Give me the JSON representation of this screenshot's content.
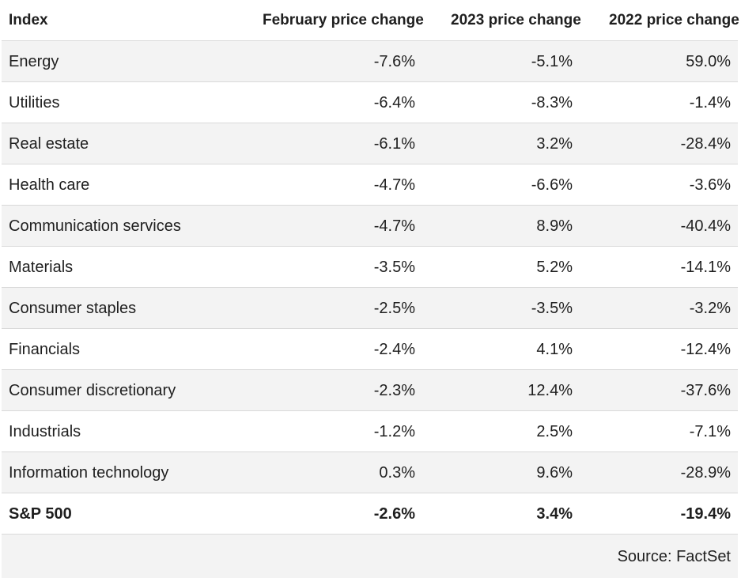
{
  "colors": {
    "row_shade": "#f3f3f3",
    "row_border": "#d9d9d9",
    "text": "#1f1f1f",
    "background": "#ffffff"
  },
  "table": {
    "headers": [
      "Index",
      "February price change",
      "2023 price change",
      "2022 price change"
    ],
    "rows": [
      {
        "label": "Energy",
        "values": [
          "-7.6%",
          "-5.1%",
          "59.0%"
        ]
      },
      {
        "label": "Utilities",
        "values": [
          "-6.4%",
          "-8.3%",
          "-1.4%"
        ]
      },
      {
        "label": "Real estate",
        "values": [
          "-6.1%",
          "3.2%",
          "-28.4%"
        ]
      },
      {
        "label": "Health care",
        "values": [
          "-4.7%",
          "-6.6%",
          "-3.6%"
        ]
      },
      {
        "label": "Communication services",
        "values": [
          "-4.7%",
          "8.9%",
          "-40.4%"
        ]
      },
      {
        "label": "Materials",
        "values": [
          "-3.5%",
          "5.2%",
          "-14.1%"
        ]
      },
      {
        "label": "Consumer staples",
        "values": [
          "-2.5%",
          "-3.5%",
          "-3.2%"
        ]
      },
      {
        "label": "Financials",
        "values": [
          "-2.4%",
          "4.1%",
          "-12.4%"
        ]
      },
      {
        "label": "Consumer discretionary",
        "values": [
          "-2.3%",
          "12.4%",
          "-37.6%"
        ]
      },
      {
        "label": "Industrials",
        "values": [
          "-1.2%",
          "2.5%",
          "-7.1%"
        ]
      },
      {
        "label": "Information technology",
        "values": [
          "0.3%",
          "9.6%",
          "-28.9%"
        ]
      },
      {
        "label": "S&P 500",
        "values": [
          "-2.6%",
          "3.4%",
          "-19.4%"
        ]
      }
    ],
    "source": "Source: FactSet"
  },
  "chart_data": {
    "type": "table",
    "title": "",
    "columns": [
      "Index",
      "February price change",
      "2023 price change",
      "2022 price change"
    ],
    "units": "percent",
    "rows": [
      [
        "Energy",
        -7.6,
        -5.1,
        59.0
      ],
      [
        "Utilities",
        -6.4,
        -8.3,
        -1.4
      ],
      [
        "Real estate",
        -6.1,
        3.2,
        -28.4
      ],
      [
        "Health care",
        -4.7,
        -6.6,
        -3.6
      ],
      [
        "Communication services",
        -4.7,
        8.9,
        -40.4
      ],
      [
        "Materials",
        -3.5,
        5.2,
        -14.1
      ],
      [
        "Consumer staples",
        -2.5,
        -3.5,
        -3.2
      ],
      [
        "Financials",
        -2.4,
        4.1,
        -12.4
      ],
      [
        "Consumer discretionary",
        -2.3,
        12.4,
        -37.6
      ],
      [
        "Industrials",
        -1.2,
        2.5,
        -7.1
      ],
      [
        "Information technology",
        0.3,
        9.6,
        -28.9
      ],
      [
        "S&P 500",
        -2.6,
        3.4,
        -19.4
      ]
    ],
    "footnote": "Source: FactSet",
    "layout_hints": {
      "zebra_striping": true,
      "shaded_rows": "odd data rows",
      "numeric_columns_alignment": "right",
      "summary_row": "S&P 500 (bold)"
    }
  }
}
